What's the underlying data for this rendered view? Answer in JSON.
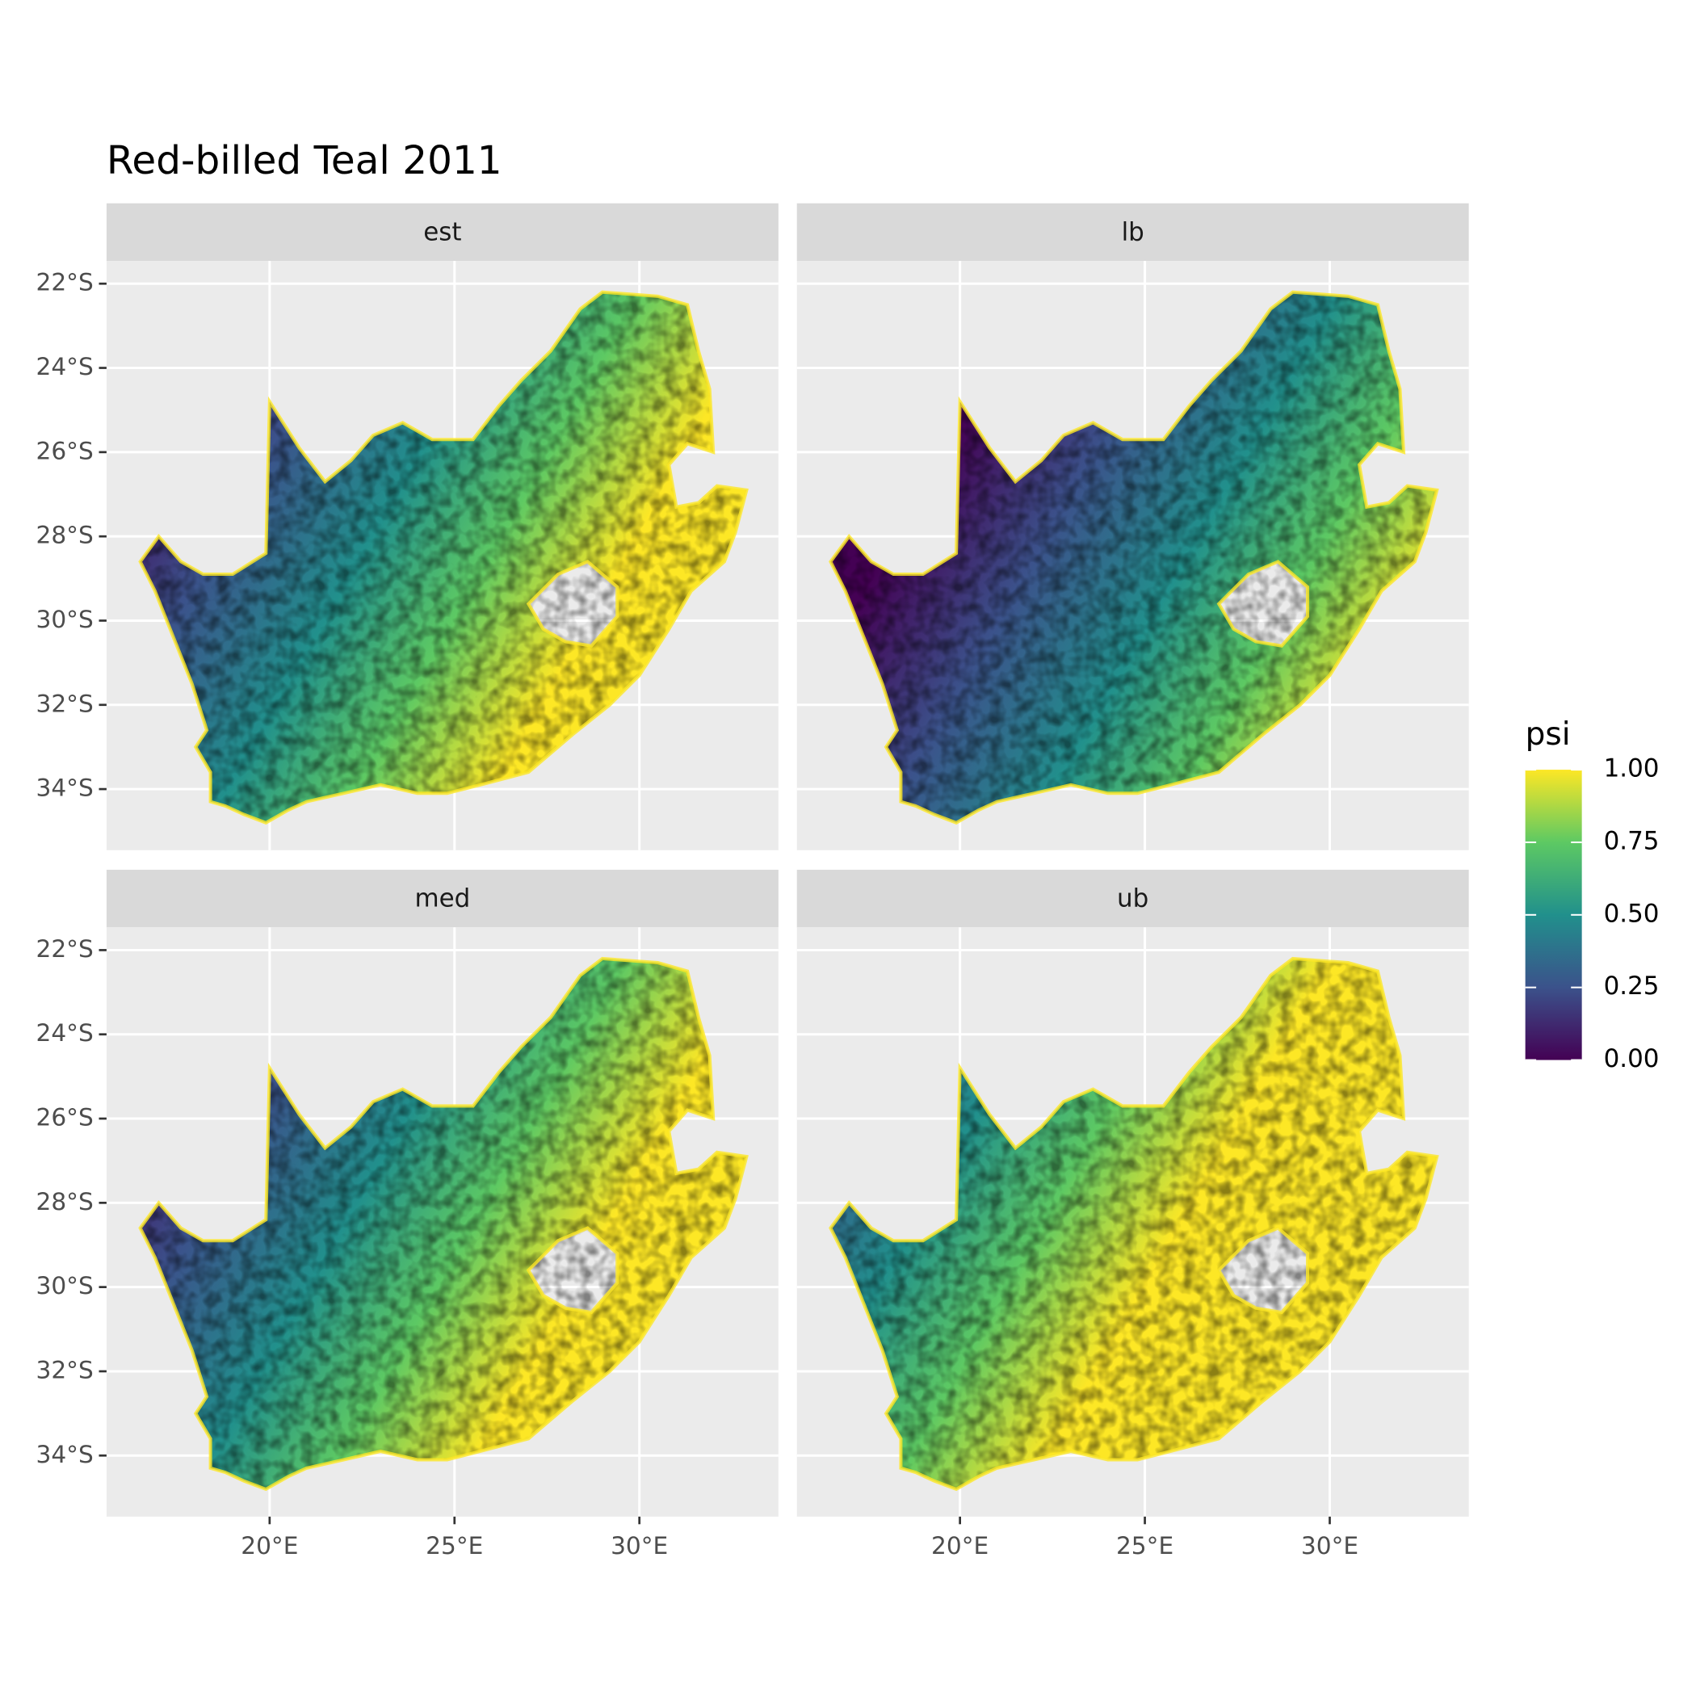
{
  "chart_data": {
    "type": "raster",
    "title": "Red-billed Teal 2011",
    "facets": [
      "est",
      "lb",
      "med",
      "ub"
    ],
    "xlim": [
      15.59,
      33.76
    ],
    "ylim": [
      -35.45,
      -21.46
    ],
    "xticks": [
      {
        "value": 20,
        "label": "20°E"
      },
      {
        "value": 25,
        "label": "25°E"
      },
      {
        "value": 30,
        "label": "30°E"
      }
    ],
    "yticks": [
      {
        "value": -22,
        "label": "22°S"
      },
      {
        "value": -24,
        "label": "24°S"
      },
      {
        "value": -26,
        "label": "26°S"
      },
      {
        "value": -28,
        "label": "28°S"
      },
      {
        "value": -30,
        "label": "30°S"
      },
      {
        "value": -32,
        "label": "32°S"
      },
      {
        "value": -34,
        "label": "34°S"
      }
    ],
    "grid": true,
    "legend": {
      "title": "psi",
      "limits": [
        0,
        1
      ],
      "colors": [
        "#440154",
        "#3b528b",
        "#21908c",
        "#5dc963",
        "#fde725"
      ],
      "ticks": [
        {
          "value": 0,
          "label": "0.00"
        },
        {
          "value": 0.25,
          "label": "0.25"
        },
        {
          "value": 0.5,
          "label": "0.50"
        },
        {
          "value": 0.75,
          "label": "0.75"
        },
        {
          "value": 1,
          "label": "1.00"
        }
      ]
    }
  }
}
